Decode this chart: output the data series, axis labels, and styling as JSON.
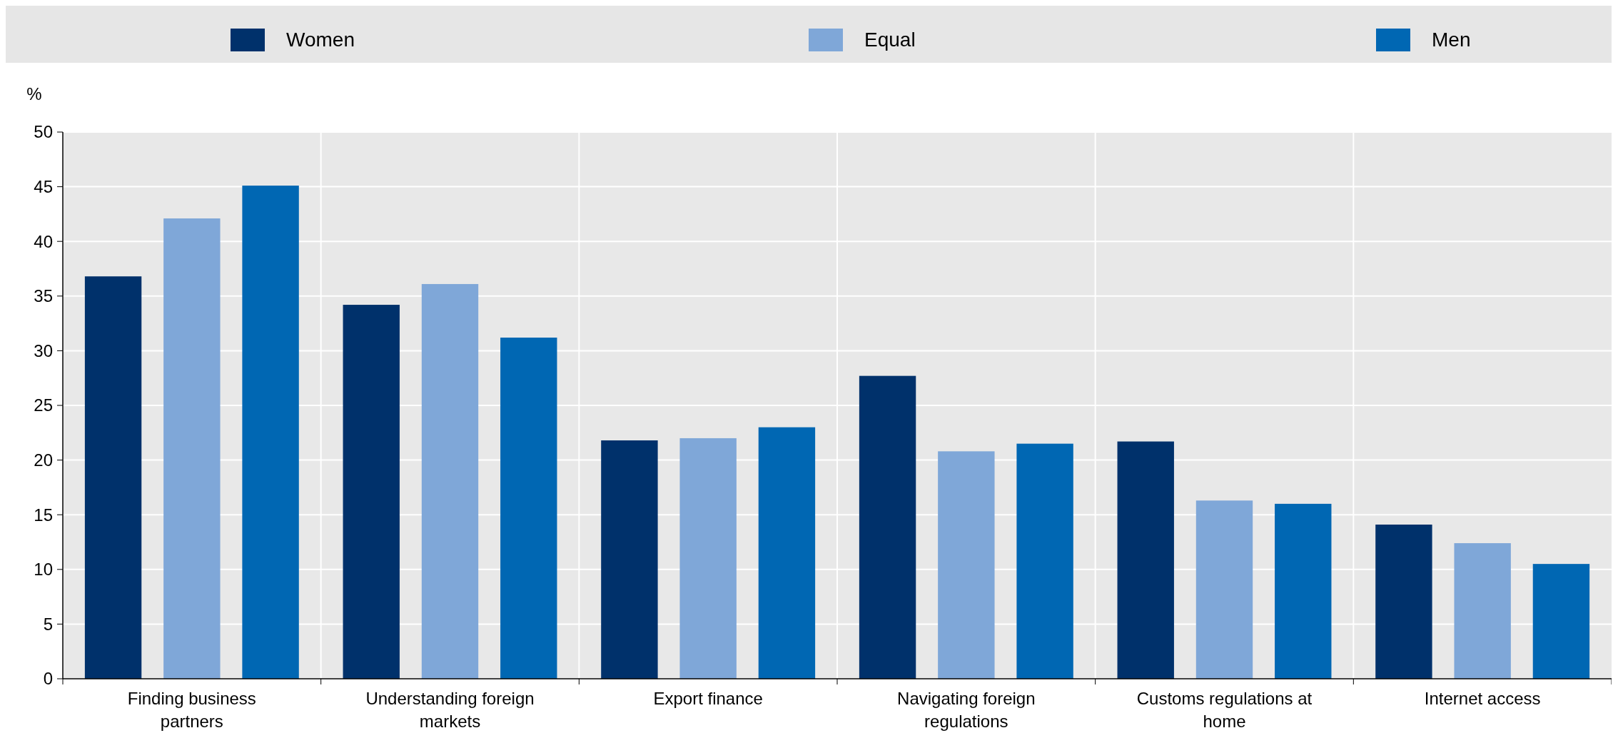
{
  "chart_data": {
    "type": "bar",
    "ylabel": "%",
    "categories": [
      "Finding business partners",
      "Understanding foreign markets",
      "Export finance",
      "Navigating foreign regulations",
      "Customs regulations at home",
      "Internet access"
    ],
    "series": [
      {
        "name": "Women",
        "color": "#00316b",
        "values": [
          36.8,
          34.2,
          21.8,
          27.7,
          21.7,
          14.1
        ]
      },
      {
        "name": "Equal",
        "color": "#7fa7d8",
        "values": [
          42.1,
          36.1,
          22.0,
          20.8,
          16.3,
          12.4
        ]
      },
      {
        "name": "Men",
        "color": "#0067b3",
        "values": [
          45.1,
          31.2,
          23.0,
          21.5,
          16.0,
          10.5
        ]
      }
    ],
    "ylim": [
      0,
      50
    ],
    "yticks": [
      0,
      5,
      10,
      15,
      20,
      25,
      30,
      35,
      40,
      45,
      50
    ],
    "grid": true,
    "legend": "top"
  }
}
